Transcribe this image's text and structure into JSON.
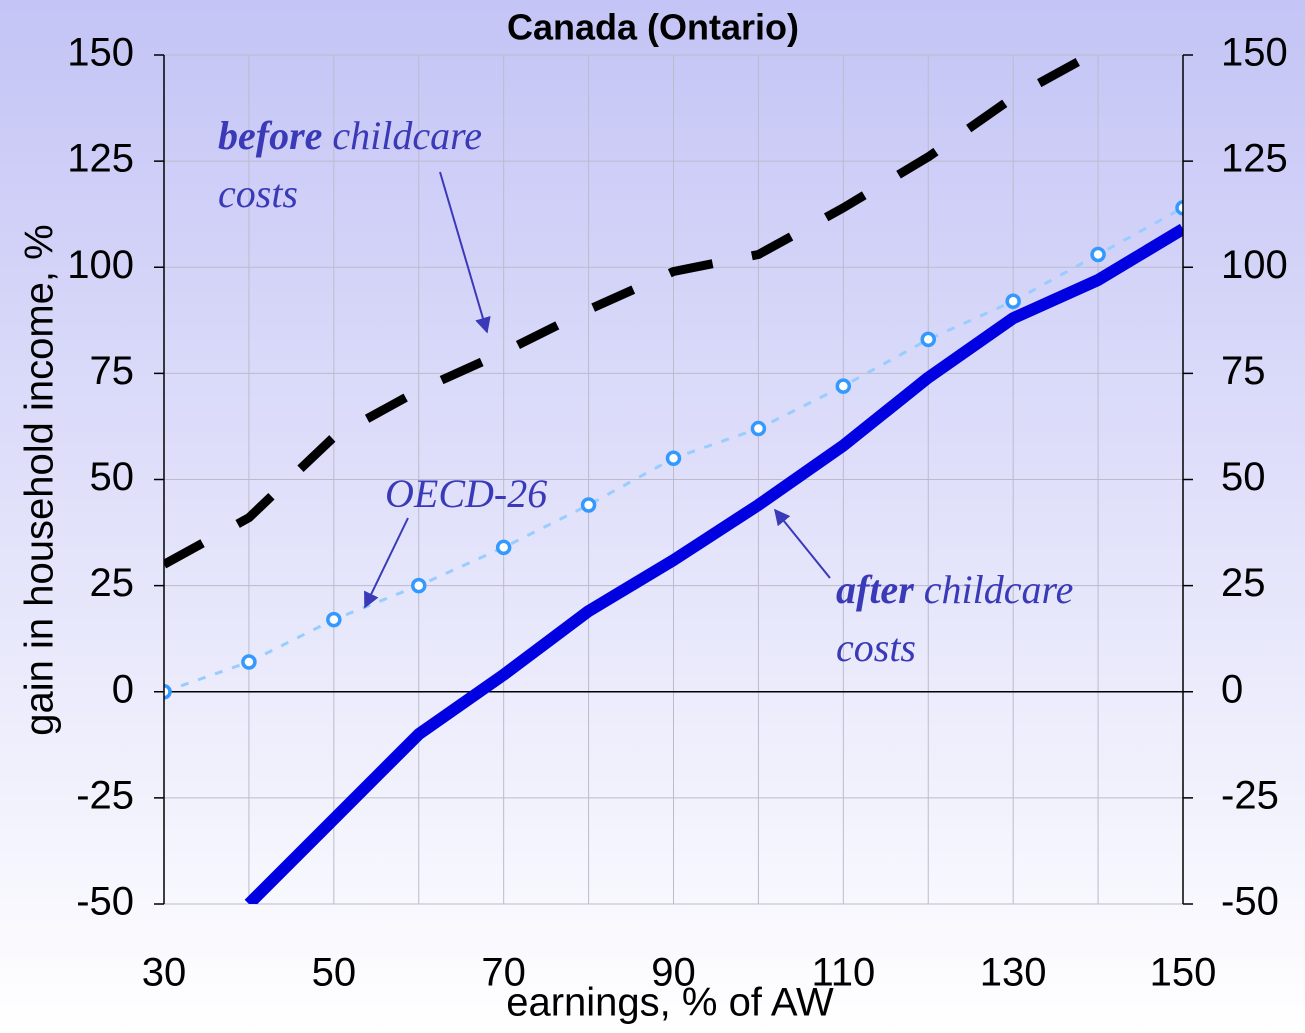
{
  "chart_data": {
    "type": "line",
    "title": "Canada (Ontario)",
    "x_label": "earnings, % of AW",
    "y_label": "gain in household income, %",
    "x": [
      30,
      40,
      50,
      60,
      70,
      80,
      90,
      100,
      110,
      120,
      130,
      140,
      150
    ],
    "xlim": [
      30,
      150
    ],
    "xticks": [
      30,
      50,
      70,
      90,
      110,
      130,
      150
    ],
    "ylim": [
      -50,
      150
    ],
    "yticks": [
      -50,
      -25,
      0,
      25,
      50,
      75,
      100,
      125,
      150
    ],
    "y2lim": [
      -50,
      150
    ],
    "y2ticks": [
      -50,
      -25,
      0,
      25,
      50,
      75,
      100,
      125,
      150
    ],
    "grid": true,
    "series": [
      {
        "name": "before childcare costs",
        "color": "#000000",
        "style": "dashed",
        "values": [
          30,
          41,
          60,
          71,
          80,
          90,
          99,
          103,
          114,
          126,
          140,
          151,
          null
        ]
      },
      {
        "name": "after childcare costs",
        "color": "#0000e0",
        "style": "solid",
        "values": [
          null,
          -50,
          -30,
          -10,
          4,
          19,
          31,
          44,
          58,
          74,
          88,
          97,
          109
        ]
      },
      {
        "name": "OECD-26",
        "color": "#99ccff",
        "style": "dotted",
        "marker": "circle",
        "marker_color": "#3399ff",
        "values": [
          0,
          7,
          17,
          25,
          34,
          44,
          55,
          62,
          72,
          83,
          92,
          103,
          114
        ]
      }
    ],
    "annotations": {
      "before": {
        "emphasis": "before",
        "rest": "childcare",
        "line2": "costs"
      },
      "oecd": {
        "text": "OECD-26"
      },
      "after": {
        "emphasis": "after",
        "rest": "childcare",
        "line2": "costs"
      }
    }
  }
}
